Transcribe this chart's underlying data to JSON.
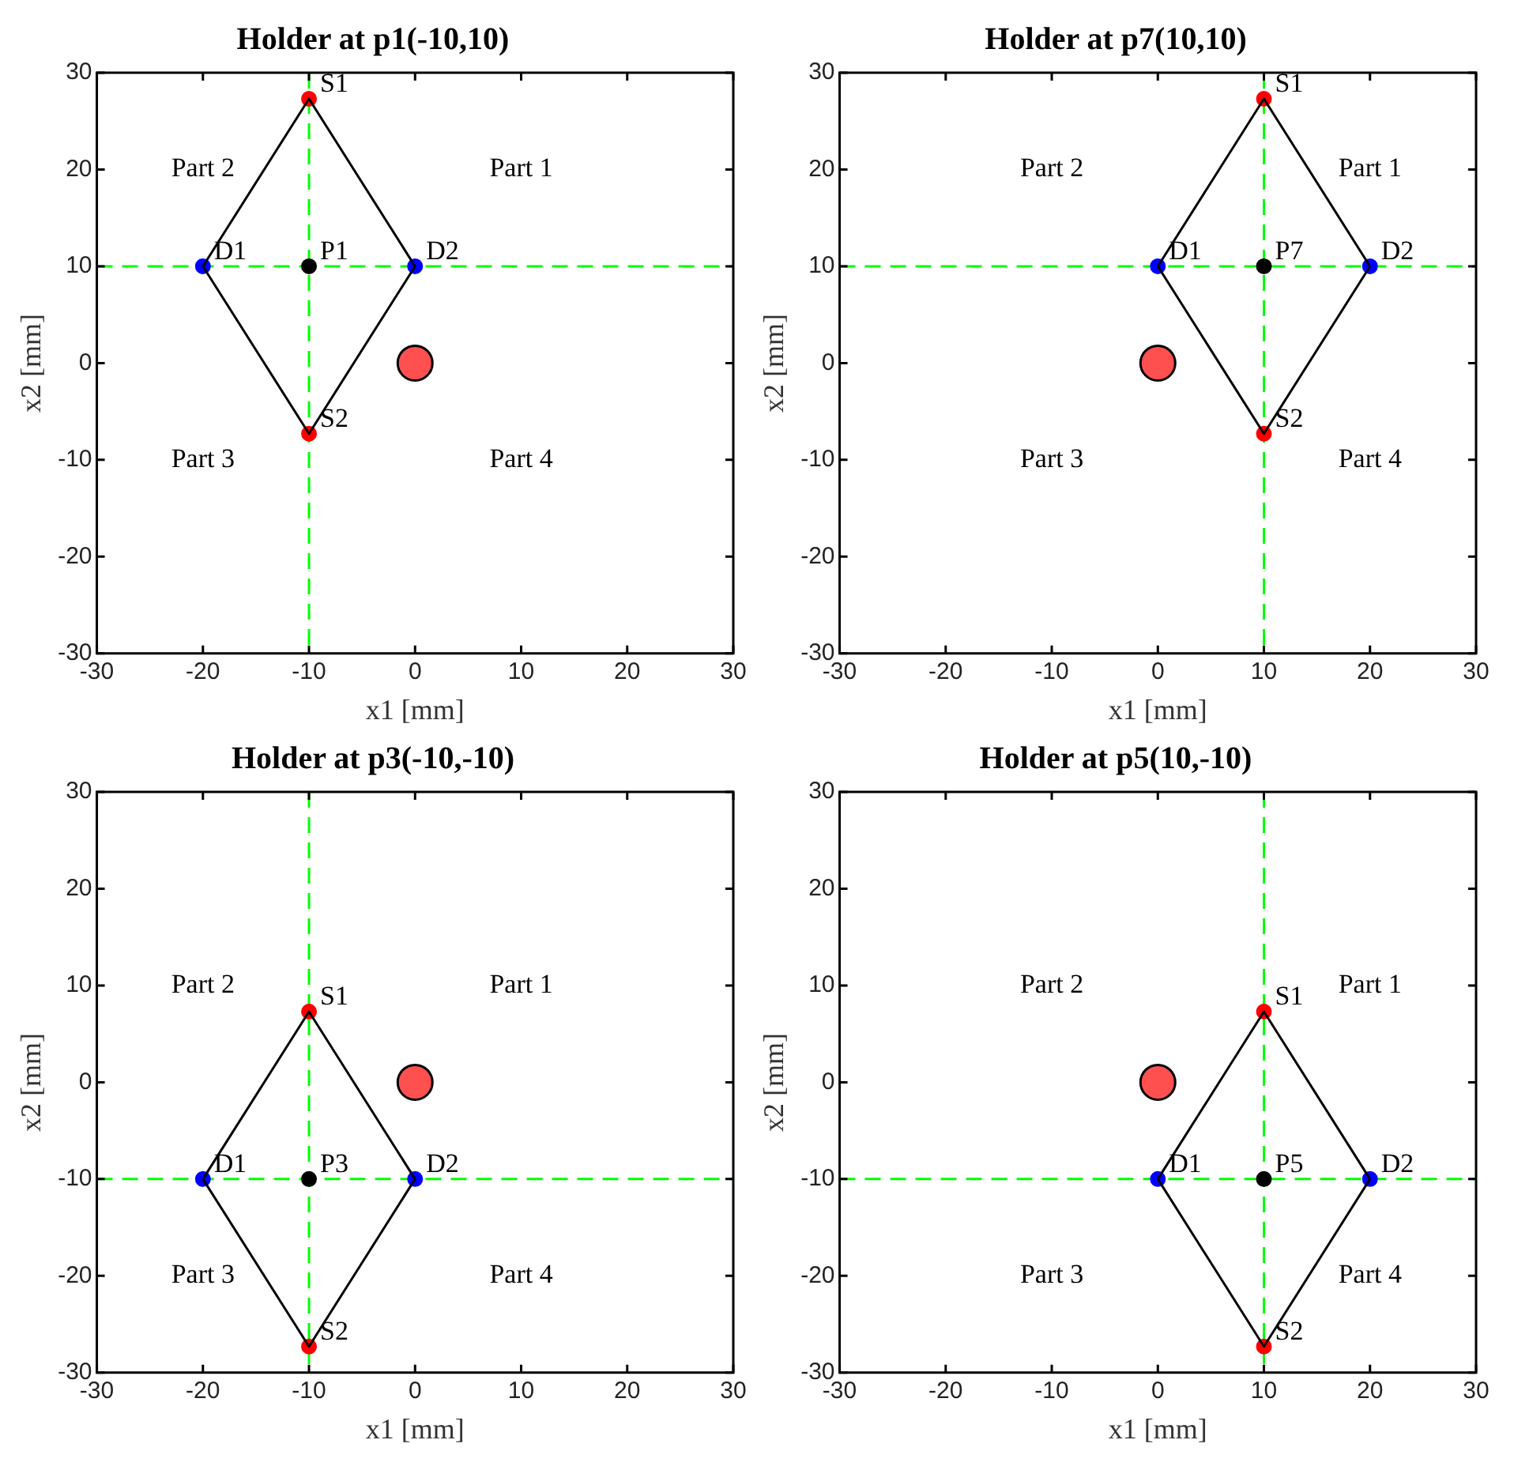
{
  "chart_data": [
    {
      "type": "scatter",
      "title": "Holder at p1(-10,10)",
      "xlabel": "x1 [mm]",
      "ylabel": "x2 [mm]",
      "xlim": [
        -30,
        30
      ],
      "ylim": [
        -30,
        30
      ],
      "xticks": [
        -30,
        -20,
        -10,
        0,
        10,
        20,
        30
      ],
      "yticks": [
        -30,
        -20,
        -10,
        0,
        10,
        20,
        30
      ],
      "grid": false,
      "legend": false,
      "marker": "circle",
      "series": [
        {
          "type": "line",
          "color": "#000000",
          "marker": "none",
          "x": [
            -20,
            -10,
            0
          ],
          "values": [
            10,
            27.3,
            10
          ]
        },
        {
          "type": "line",
          "color": "#000000",
          "marker": "none",
          "x": [
            -20,
            -10,
            0
          ],
          "values": [
            10,
            -7.3,
            10
          ]
        },
        {
          "color": "#ff0000",
          "x": [
            -10,
            -10
          ],
          "values": [
            27.3,
            -7.3
          ]
        },
        {
          "color": "#0000ff",
          "x": [
            -20,
            0
          ],
          "values": [
            10,
            10
          ]
        },
        {
          "color": "#000000",
          "x": [
            -10
          ],
          "values": [
            10
          ]
        },
        {
          "type": "bubble",
          "color": "#ff5050",
          "x": [
            0
          ],
          "values": [
            0
          ],
          "sizes": [
            1
          ]
        }
      ],
      "ref_lines": [
        {
          "axis": "x",
          "value": -10,
          "color": "#00ff00",
          "line_style": "dashed"
        },
        {
          "axis": "y",
          "value": 10,
          "color": "#00ff00",
          "line_style": "dashed"
        }
      ],
      "annotations": [
        {
          "text": "S1",
          "x": -10,
          "y": 27.3
        },
        {
          "text": "S2",
          "x": -10,
          "y": -7.3
        },
        {
          "text": "D1",
          "x": -20,
          "y": 10
        },
        {
          "text": "D2",
          "x": 0,
          "y": 10
        },
        {
          "text": "P1",
          "x": -10,
          "y": 10
        },
        "Part 2",
        "Part 1",
        "Part 3",
        "Part 4"
      ]
    },
    {
      "type": "scatter",
      "title": "Holder at p7(10,10)",
      "xlabel": "x1 [mm]",
      "ylabel": "x2 [mm]",
      "xlim": [
        -30,
        30
      ],
      "ylim": [
        -30,
        30
      ],
      "xticks": [
        -30,
        -20,
        -10,
        0,
        10,
        20,
        30
      ],
      "yticks": [
        -30,
        -20,
        -10,
        0,
        10,
        20,
        30
      ],
      "grid": false,
      "legend": false,
      "marker": "circle",
      "series": [
        {
          "type": "line",
          "color": "#000000",
          "marker": "none",
          "x": [
            0,
            10,
            20
          ],
          "values": [
            10,
            27.3,
            10
          ]
        },
        {
          "type": "line",
          "color": "#000000",
          "marker": "none",
          "x": [
            0,
            10,
            20
          ],
          "values": [
            10,
            -7.3,
            10
          ]
        },
        {
          "color": "#ff0000",
          "x": [
            10,
            10
          ],
          "values": [
            27.3,
            -7.3
          ]
        },
        {
          "color": "#0000ff",
          "x": [
            0,
            20
          ],
          "values": [
            10,
            10
          ]
        },
        {
          "color": "#000000",
          "x": [
            10
          ],
          "values": [
            10
          ]
        },
        {
          "type": "bubble",
          "color": "#ff5050",
          "x": [
            0
          ],
          "values": [
            0
          ],
          "sizes": [
            1
          ]
        }
      ],
      "ref_lines": [
        {
          "axis": "x",
          "value": 10,
          "color": "#00ff00",
          "line_style": "dashed"
        },
        {
          "axis": "y",
          "value": 10,
          "color": "#00ff00",
          "line_style": "dashed"
        }
      ],
      "annotations": [
        {
          "text": "S1",
          "x": 10,
          "y": 27.3
        },
        {
          "text": "S2",
          "x": 10,
          "y": -7.3
        },
        {
          "text": "D1",
          "x": 0,
          "y": 10
        },
        {
          "text": "D2",
          "x": 20,
          "y": 10
        },
        {
          "text": "P7",
          "x": 10,
          "y": 10
        },
        "Part 2",
        "Part 1",
        "Part 3",
        "Part 4"
      ]
    },
    {
      "type": "scatter",
      "title": "Holder at p3(-10,-10)",
      "xlabel": "x1 [mm]",
      "ylabel": "x2 [mm]",
      "xlim": [
        -30,
        30
      ],
      "ylim": [
        -30,
        30
      ],
      "xticks": [
        -30,
        -20,
        -10,
        0,
        10,
        20,
        30
      ],
      "yticks": [
        -30,
        -20,
        -10,
        0,
        10,
        20,
        30
      ],
      "grid": false,
      "legend": false,
      "marker": "circle",
      "series": [
        {
          "type": "line",
          "color": "#000000",
          "marker": "none",
          "x": [
            -20,
            -10,
            0
          ],
          "values": [
            -10,
            7.3,
            -10
          ]
        },
        {
          "type": "line",
          "color": "#000000",
          "marker": "none",
          "x": [
            -20,
            -10,
            0
          ],
          "values": [
            -10,
            -27.3,
            -10
          ]
        },
        {
          "color": "#ff0000",
          "x": [
            -10,
            -10
          ],
          "values": [
            7.3,
            -27.3
          ]
        },
        {
          "color": "#0000ff",
          "x": [
            -20,
            0
          ],
          "values": [
            -10,
            -10
          ]
        },
        {
          "color": "#000000",
          "x": [
            -10
          ],
          "values": [
            -10
          ]
        },
        {
          "type": "bubble",
          "color": "#ff5050",
          "x": [
            0
          ],
          "values": [
            0
          ],
          "sizes": [
            1
          ]
        }
      ],
      "ref_lines": [
        {
          "axis": "x",
          "value": -10,
          "color": "#00ff00",
          "line_style": "dashed"
        },
        {
          "axis": "y",
          "value": -10,
          "color": "#00ff00",
          "line_style": "dashed"
        }
      ],
      "annotations": [
        {
          "text": "S1",
          "x": -10,
          "y": 7.3
        },
        {
          "text": "S2",
          "x": -10,
          "y": -27.3
        },
        {
          "text": "D1",
          "x": -20,
          "y": -10
        },
        {
          "text": "D2",
          "x": 0,
          "y": -10
        },
        {
          "text": "P3",
          "x": -10,
          "y": -10
        },
        "Part 2",
        "Part 1",
        "Part 3",
        "Part 4"
      ]
    },
    {
      "type": "scatter",
      "title": "Holder at p5(10,-10)",
      "xlabel": "x1 [mm]",
      "ylabel": "x2 [mm]",
      "xlim": [
        -30,
        30
      ],
      "ylim": [
        -30,
        30
      ],
      "xticks": [
        -30,
        -20,
        -10,
        0,
        10,
        20,
        30
      ],
      "yticks": [
        -30,
        -20,
        -10,
        0,
        10,
        20,
        30
      ],
      "grid": false,
      "legend": false,
      "marker": "circle",
      "series": [
        {
          "type": "line",
          "color": "#000000",
          "marker": "none",
          "x": [
            0,
            10,
            20
          ],
          "values": [
            -10,
            7.3,
            -10
          ]
        },
        {
          "type": "line",
          "color": "#000000",
          "marker": "none",
          "x": [
            0,
            10,
            20
          ],
          "values": [
            -10,
            -27.3,
            -10
          ]
        },
        {
          "color": "#ff0000",
          "x": [
            10,
            10
          ],
          "values": [
            7.3,
            -27.3
          ]
        },
        {
          "color": "#0000ff",
          "x": [
            0,
            20
          ],
          "values": [
            -10,
            -10
          ]
        },
        {
          "color": "#000000",
          "x": [
            10
          ],
          "values": [
            -10
          ]
        },
        {
          "type": "bubble",
          "color": "#ff5050",
          "x": [
            0
          ],
          "values": [
            0
          ],
          "sizes": [
            1
          ]
        }
      ],
      "ref_lines": [
        {
          "axis": "x",
          "value": 10,
          "color": "#00ff00",
          "line_style": "dashed"
        },
        {
          "axis": "y",
          "value": -10,
          "color": "#00ff00",
          "line_style": "dashed"
        }
      ],
      "annotations": [
        {
          "text": "S1",
          "x": 10,
          "y": 7.3
        },
        {
          "text": "S2",
          "x": 10,
          "y": -27.3
        },
        {
          "text": "D1",
          "x": 0,
          "y": -10
        },
        {
          "text": "D2",
          "x": 20,
          "y": -10
        },
        {
          "text": "P5",
          "x": 10,
          "y": -10
        },
        "Part 2",
        "Part 1",
        "Part 3",
        "Part 4"
      ]
    }
  ]
}
